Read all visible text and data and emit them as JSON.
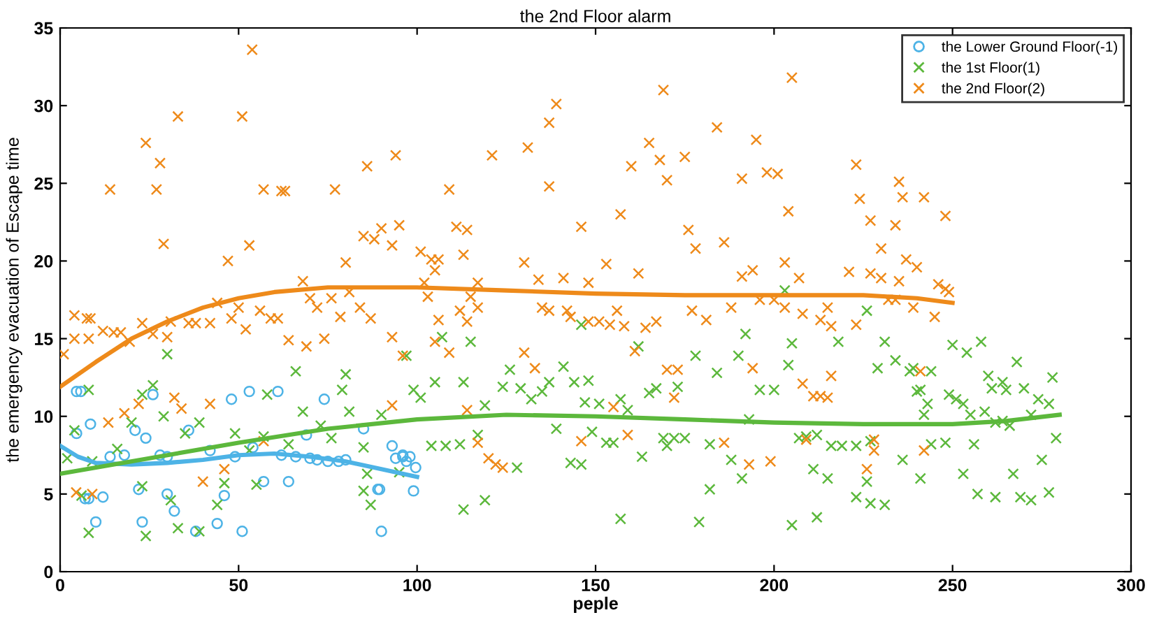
{
  "chart_data": {
    "type": "scatter",
    "title": "the 2nd Floor alarm",
    "xlabel": "peple",
    "ylabel": "the emergency evacuation of Escape time",
    "xlim": [
      0,
      300
    ],
    "xticks": [
      0,
      50,
      100,
      150,
      200,
      250,
      300
    ],
    "ylim": [
      0,
      35
    ],
    "yticks": [
      0,
      5,
      10,
      15,
      20,
      25,
      30,
      35
    ],
    "grid": false,
    "legend": "top right",
    "series": [
      {
        "name": "the Lower Ground Floor(-1)",
        "marker": "circle",
        "color": "#4db3e6",
        "x": [
          4.6,
          5.8,
          4.6,
          8.5,
          7,
          8,
          12,
          10,
          14,
          18,
          21,
          24,
          26,
          22,
          23,
          28,
          30,
          30,
          32,
          36,
          38,
          44,
          46,
          48,
          53,
          51,
          42,
          49,
          54,
          57,
          61,
          64,
          62,
          66,
          70,
          69,
          74,
          72,
          75,
          78,
          80,
          85,
          89,
          89.5,
          90,
          93,
          94,
          96,
          96,
          98,
          99.6,
          99,
          97
        ],
        "values": [
          11.6,
          11.6,
          8.9,
          9.5,
          4.7,
          4.7,
          4.8,
          3.2,
          7.4,
          7.5,
          9.1,
          8.6,
          11.4,
          5.3,
          3.2,
          7.5,
          7.4,
          5.0,
          3.9,
          9.1,
          2.6,
          3.1,
          4.9,
          11.1,
          11.6,
          2.6,
          7.8,
          7.4,
          8.0,
          5.8,
          11.6,
          5.8,
          7.5,
          7.4,
          7.3,
          8.8,
          11.1,
          7.2,
          7.1,
          7.1,
          7.2,
          9.2,
          5.3,
          5.3,
          2.6,
          8.1,
          7.3,
          7.5,
          7.4,
          7.4,
          6.7,
          5.2,
          7.1
        ]
      },
      {
        "name": "the 1st Floor(1)",
        "marker": "cross",
        "color": "#5cb83c",
        "x": [
          30,
          8,
          26,
          23,
          4,
          20,
          29,
          39,
          35,
          2,
          9,
          16,
          58,
          66,
          68,
          80,
          79,
          81,
          97,
          99,
          90,
          73,
          49,
          57,
          76,
          85,
          64,
          53,
          6,
          23,
          31,
          44,
          46,
          55,
          85,
          87,
          86,
          95,
          8,
          24,
          33,
          39,
          101,
          105,
          107,
          115,
          113,
          104,
          108,
          112,
          117,
          119,
          124,
          126,
          129,
          132,
          135,
          137,
          139,
          141,
          144,
          147,
          148,
          146,
          149,
          151,
          153,
          155,
          157,
          159,
          162,
          163,
          165,
          167,
          169,
          170,
          173,
          178,
          172,
          175,
          182,
          184,
          190,
          192,
          188,
          191,
          113,
          119,
          128,
          143,
          146,
          157,
          179,
          182,
          203,
          205,
          204,
          196,
          200,
          193,
          207,
          209,
          212,
          211,
          215,
          216,
          219,
          223,
          218,
          226,
          227,
          229,
          231,
          234,
          238,
          239,
          236,
          226,
          223,
          227,
          231,
          205,
          212,
          240,
          241,
          243,
          244,
          242,
          241,
          244,
          248,
          249,
          251,
          253,
          250,
          254,
          258,
          253,
          255,
          259,
          256,
          260,
          261,
          262,
          264,
          264,
          265,
          268,
          266,
          267,
          257,
          262,
          269,
          272,
          270,
          272,
          274,
          277,
          278,
          275,
          277,
          279
        ],
        "values": [
          14.0,
          11.7,
          12.0,
          11.4,
          9.1,
          9.6,
          10.0,
          9.6,
          8.9,
          7.3,
          7.1,
          7.9,
          11.4,
          12.9,
          10.3,
          12.7,
          11.7,
          10.3,
          13.9,
          11.7,
          10.1,
          9.4,
          8.9,
          8.7,
          8.6,
          8.0,
          8.2,
          7.8,
          4.9,
          5.5,
          4.6,
          4.3,
          5.7,
          5.6,
          5.2,
          4.3,
          6.3,
          6.4,
          2.5,
          2.3,
          2.8,
          2.6,
          11.2,
          12.2,
          15.1,
          14.8,
          12.2,
          8.1,
          8.1,
          8.2,
          8.8,
          10.7,
          11.9,
          13.0,
          11.8,
          11.1,
          11.6,
          12.2,
          9.2,
          13.2,
          12.2,
          10.9,
          12.3,
          15.9,
          9.0,
          10.8,
          8.3,
          8.3,
          11.1,
          10.4,
          14.5,
          7.4,
          11.5,
          11.8,
          8.6,
          8.1,
          11.9,
          13.9,
          8.6,
          8.6,
          8.2,
          12.8,
          13.9,
          15.3,
          7.2,
          6.0,
          4.0,
          4.6,
          6.7,
          7.0,
          6.9,
          3.4,
          3.2,
          5.3,
          18.1,
          14.7,
          13.3,
          11.7,
          11.7,
          9.8,
          8.6,
          8.7,
          8.8,
          6.6,
          6.0,
          8.1,
          8.1,
          8.1,
          14.8,
          16.8,
          8.4,
          13.1,
          14.8,
          13.6,
          12.9,
          13.1,
          7.2,
          5.8,
          4.8,
          4.4,
          4.3,
          3.0,
          3.5,
          11.6,
          11.7,
          10.8,
          12.9,
          10.1,
          6.0,
          8.2,
          8.3,
          11.4,
          11.1,
          10.8,
          14.6,
          14.1,
          14.8,
          6.3,
          10.1,
          10.3,
          8.2,
          12.6,
          11.8,
          9.6,
          9.7,
          12.2,
          11.7,
          13.5,
          9.4,
          6.3,
          5.0,
          4.8,
          4.8,
          4.6,
          11.8,
          10.1,
          11.1,
          10.8,
          12.5,
          7.2,
          5.1,
          8.6
        ]
      },
      {
        "name": "the 2nd Floor(2)",
        "marker": "cross",
        "color": "#ee8a1a",
        "x": [
          53.8,
          33,
          51,
          24,
          28,
          14,
          27,
          57,
          62,
          63,
          77,
          86,
          94,
          29,
          53,
          47,
          80,
          85,
          90,
          95,
          88,
          93,
          68,
          1,
          4,
          8,
          4,
          7.5,
          8.5,
          12,
          15,
          17,
          19.5,
          23,
          26,
          30,
          31,
          36,
          38,
          42,
          44,
          48,
          50,
          52,
          56,
          59,
          61,
          64,
          69,
          70,
          72,
          74,
          76,
          78.5,
          81,
          84,
          87,
          93,
          96,
          4.5,
          9,
          13.5,
          18,
          22,
          32,
          34,
          42,
          40,
          46,
          57,
          93,
          121,
          131,
          139,
          137,
          137,
          109,
          111,
          114,
          113,
          101,
          104,
          106,
          105,
          102,
          117,
          130,
          134,
          141,
          148,
          146,
          157,
          153,
          162,
          160,
          165,
          168,
          169,
          170,
          175,
          184,
          191,
          195,
          176,
          186,
          178,
          191,
          194,
          103,
          106,
          105,
          109,
          112,
          114,
          115,
          117,
          130,
          133,
          135,
          137,
          142,
          143,
          148,
          151,
          154,
          156,
          158,
          161,
          164,
          167,
          170,
          173,
          172,
          177,
          181,
          188,
          155,
          159,
          114,
          117,
          120,
          122,
          124,
          146,
          186,
          193,
          205,
          198,
          201,
          204,
          223,
          224,
          227,
          230,
          235,
          236,
          234,
          242,
          248,
          203,
          207,
          221,
          227,
          230,
          235,
          237,
          240,
          246,
          248,
          249,
          196,
          200,
          203,
          208,
          215,
          213,
          216,
          223,
          232,
          234,
          239,
          245,
          194,
          208,
          211,
          213,
          215,
          216,
          241,
          209,
          228,
          228,
          199,
          226,
          242
        ],
        "values": [
          33.6,
          29.3,
          29.3,
          27.6,
          26.3,
          24.6,
          24.6,
          24.6,
          24.5,
          24.5,
          24.6,
          26.1,
          26.8,
          21.1,
          21.0,
          20.0,
          19.9,
          21.6,
          22.1,
          22.3,
          21.4,
          21.0,
          18.7,
          14.0,
          15.0,
          15.0,
          16.5,
          16.3,
          16.3,
          15.5,
          15.4,
          15.4,
          14.8,
          16.0,
          15.3,
          15.1,
          16.1,
          16.0,
          16.0,
          16.0,
          17.3,
          16.3,
          17.0,
          15.6,
          16.8,
          16.3,
          16.3,
          14.9,
          14.5,
          17.6,
          17.0,
          15.0,
          17.6,
          16.4,
          18.0,
          17.0,
          16.3,
          15.1,
          13.9,
          5.1,
          5.0,
          9.6,
          10.2,
          10.8,
          11.2,
          10.5,
          10.8,
          5.8,
          6.6,
          8.4,
          10.7,
          26.8,
          27.3,
          30.1,
          28.9,
          24.8,
          24.6,
          22.2,
          22.0,
          20.4,
          20.6,
          20.1,
          20.1,
          19.4,
          18.6,
          18.6,
          19.9,
          18.8,
          18.9,
          18.6,
          22.2,
          23.0,
          19.8,
          19.2,
          26.1,
          27.6,
          26.5,
          31.0,
          25.2,
          26.7,
          28.6,
          25.3,
          27.8,
          22.0,
          21.2,
          20.8,
          19.0,
          19.4,
          17.7,
          16.2,
          14.8,
          14.1,
          16.8,
          16.1,
          17.7,
          17.0,
          14.1,
          13.1,
          17.0,
          16.8,
          16.8,
          16.4,
          16.1,
          16.1,
          15.9,
          16.8,
          15.8,
          14.2,
          15.7,
          16.1,
          13.0,
          13.0,
          11.2,
          16.8,
          16.2,
          17.0,
          10.6,
          8.8,
          10.4,
          8.3,
          7.3,
          6.9,
          6.7,
          8.4,
          8.3,
          6.9,
          31.8,
          25.7,
          25.6,
          23.2,
          26.2,
          24.0,
          22.6,
          20.8,
          25.1,
          24.1,
          22.3,
          24.1,
          22.9,
          19.9,
          18.9,
          19.3,
          19.2,
          18.9,
          18.7,
          20.1,
          19.6,
          18.5,
          18.2,
          18.0,
          17.5,
          17.5,
          17.0,
          16.6,
          17.0,
          16.2,
          15.8,
          15.9,
          17.5,
          17.5,
          17.0,
          16.4,
          13.1,
          12.1,
          11.3,
          11.3,
          11.2,
          12.6,
          12.9,
          8.5,
          8.5,
          7.8,
          7.1,
          6.6,
          7.8
        ]
      },
      {
        "type": "line",
        "marker": "none",
        "color": "#4db3e6",
        "x": [
          0,
          5,
          10,
          20,
          30,
          40,
          50,
          60,
          70,
          80,
          90,
          100
        ],
        "values": [
          8.1,
          7.4,
          7.0,
          6.9,
          7.0,
          7.2,
          7.5,
          7.6,
          7.4,
          7.1,
          6.6,
          6.1
        ]
      },
      {
        "type": "line",
        "marker": "none",
        "color": "#5cb83c",
        "x": [
          0,
          25,
          50,
          75,
          100,
          125,
          150,
          175,
          200,
          225,
          250,
          265,
          280
        ],
        "values": [
          6.3,
          7.3,
          8.3,
          9.2,
          9.8,
          10.1,
          10.0,
          9.8,
          9.6,
          9.5,
          9.5,
          9.7,
          10.1
        ]
      },
      {
        "type": "line",
        "marker": "none",
        "color": "#ee8a1a",
        "x": [
          0,
          10,
          20,
          30,
          40,
          50,
          60,
          75,
          100,
          125,
          150,
          175,
          200,
          225,
          240,
          250
        ],
        "values": [
          11.9,
          13.5,
          15.0,
          16.1,
          17.0,
          17.6,
          18.0,
          18.3,
          18.3,
          18.1,
          17.9,
          17.8,
          17.8,
          17.8,
          17.6,
          17.3
        ]
      }
    ]
  }
}
